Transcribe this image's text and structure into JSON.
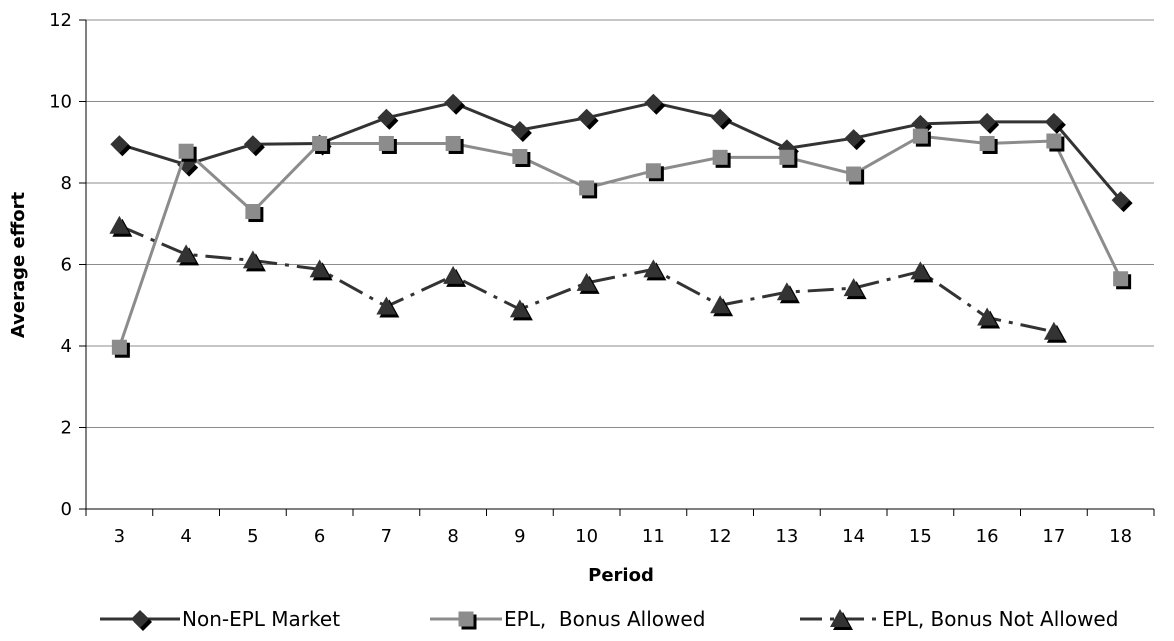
{
  "chart_data": {
    "type": "line",
    "xlabel": "Period",
    "ylabel": "Average effort",
    "ylim": [
      0,
      12
    ],
    "yticks": [
      0,
      2,
      4,
      6,
      8,
      10,
      12
    ],
    "categories": [
      "3",
      "4",
      "5",
      "6",
      "7",
      "8",
      "9",
      "10",
      "11",
      "12",
      "13",
      "14",
      "15",
      "16",
      "17",
      "18"
    ],
    "grid": "horizontal",
    "legend_position": "bottom",
    "series": [
      {
        "name": "Non-EPL Market",
        "marker": "diamond",
        "dash": "solid",
        "color": "#333333",
        "values": [
          8.95,
          8.45,
          8.95,
          8.97,
          9.6,
          9.97,
          9.3,
          9.6,
          9.97,
          9.6,
          8.85,
          9.1,
          9.45,
          9.5,
          9.5,
          7.58
        ]
      },
      {
        "name": "EPL,  Bonus Allowed",
        "marker": "square",
        "dash": "solid",
        "color": "#8c8c8c",
        "values": [
          3.97,
          8.78,
          7.3,
          8.97,
          8.97,
          8.97,
          8.65,
          7.88,
          8.3,
          8.63,
          8.63,
          8.22,
          9.15,
          8.97,
          9.03,
          5.65
        ]
      },
      {
        "name": "EPL, Bonus Not Allowed",
        "marker": "triangle",
        "dash": "dashdot",
        "color": "#333333",
        "values": [
          6.95,
          6.25,
          6.1,
          5.88,
          4.97,
          5.72,
          4.9,
          5.55,
          5.88,
          5.0,
          5.32,
          5.42,
          5.83,
          4.7,
          4.35,
          null
        ]
      }
    ]
  }
}
